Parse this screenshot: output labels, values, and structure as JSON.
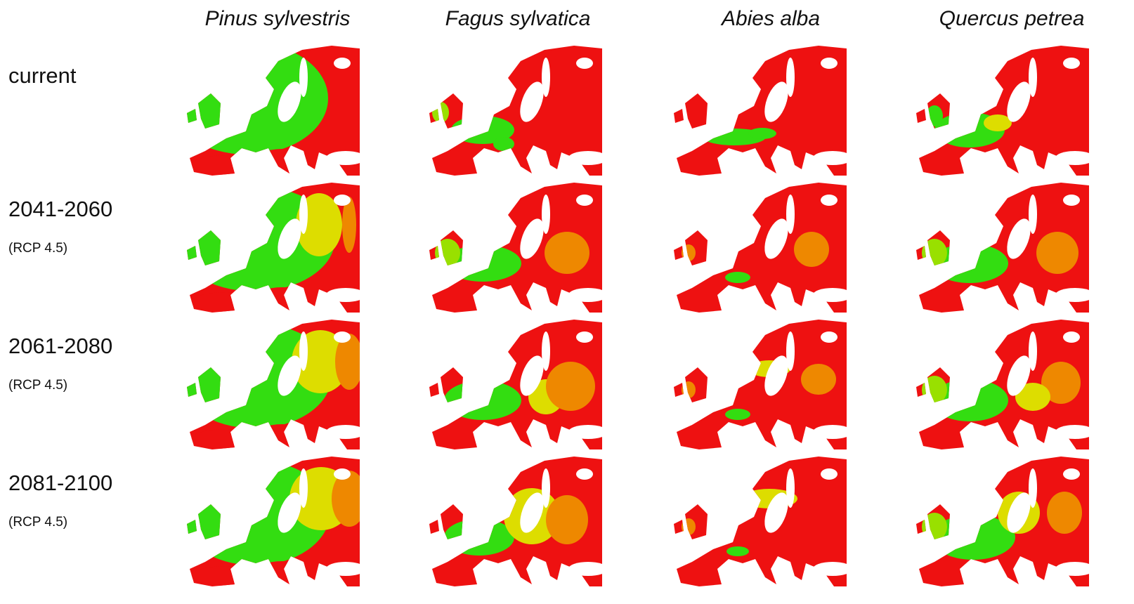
{
  "columns": [
    "Pinus sylvestris",
    "Fagus sylvatica",
    "Abies alba",
    "Quercus petrea"
  ],
  "rows": [
    {
      "period": "current"
    },
    {
      "period": "2041-2060",
      "scenario": "(RCP 4.5)"
    },
    {
      "period": "2061-2080",
      "scenario": "(RCP 4.5)"
    },
    {
      "period": "2081-2100",
      "scenario": "(RCP 4.5)"
    }
  ]
}
